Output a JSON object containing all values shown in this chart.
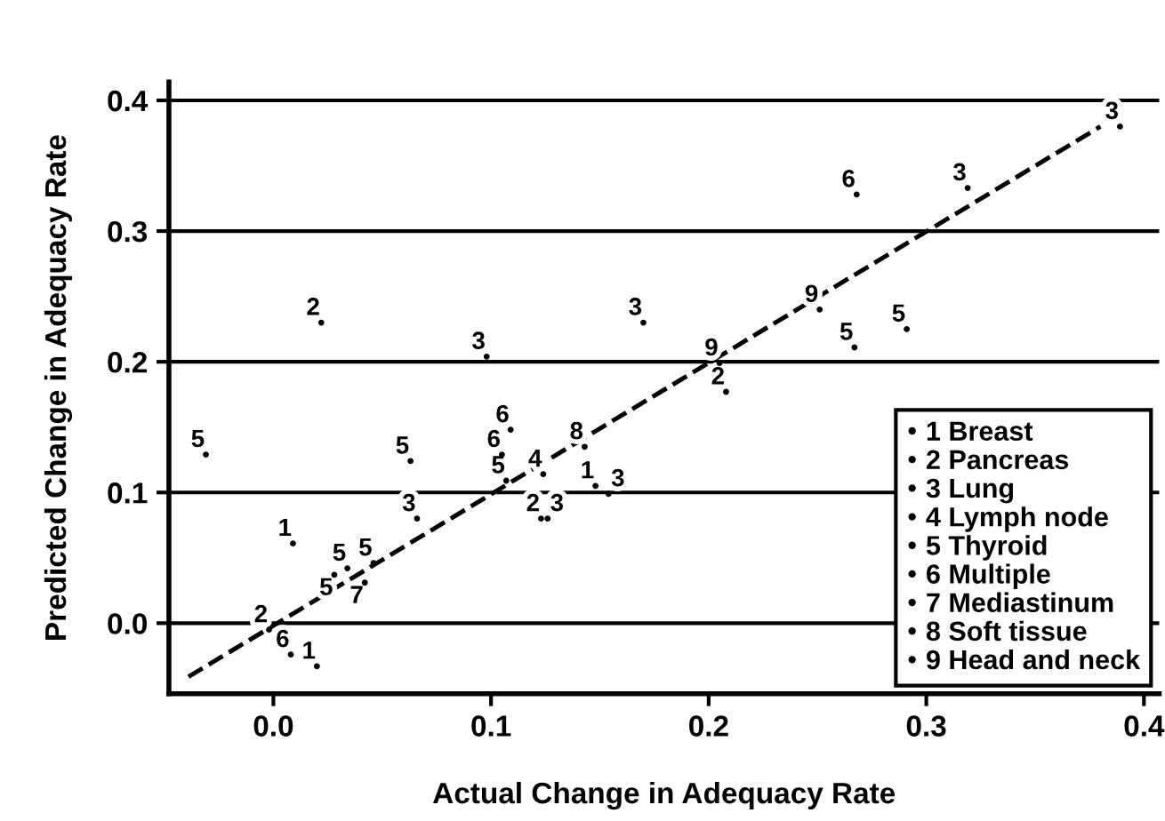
{
  "chart_data": {
    "type": "scatter",
    "xlabel": "Actual Change in Adequacy Rate",
    "ylabel": "Predicted Change in Adequacy Rate",
    "xlim": [
      -0.048,
      0.407
    ],
    "ylim": [
      -0.054,
      0.414
    ],
    "xticks": [
      {
        "value": 0,
        "label": "0.0"
      },
      0.1,
      0.2,
      0.3,
      0.4
    ],
    "yticks": [
      {
        "value": 0,
        "label": "0.0"
      },
      0.1,
      0.2,
      0.3,
      0.4
    ],
    "grid": "y",
    "legend": "bottom right",
    "series": [
      {
        "name": "1 Breast",
        "color": "#000000",
        "x": [
          0.148,
          0.009,
          0.02
        ],
        "values": [
          0.105,
          0.061,
          -0.033
        ]
      },
      {
        "name": "2 Pancreas",
        "color": "#000000",
        "x": [
          0.022,
          0.123,
          -0.002,
          0.208
        ],
        "values": [
          0.23,
          0.08,
          -0.005,
          0.177
        ]
      },
      {
        "name": "3 Lung",
        "color": "#000000",
        "x": [
          0.17,
          0.098,
          0.154,
          0.066,
          0.126,
          0.389,
          0.319
        ],
        "values": [
          0.23,
          0.204,
          0.099,
          0.08,
          0.08,
          0.38,
          0.333
        ]
      },
      {
        "name": "4 Lymph node",
        "color": "#000000",
        "x": [
          0.124
        ],
        "values": [
          0.114
        ]
      },
      {
        "name": "5 Thyroid",
        "color": "#000000",
        "x": [
          -0.031,
          0.063,
          0.107,
          0.034,
          0.046,
          0.028,
          0.291,
          0.267
        ],
        "values": [
          0.129,
          0.124,
          0.109,
          0.042,
          0.046,
          0.037,
          0.225,
          0.211
        ]
      },
      {
        "name": "6 Multiple",
        "color": "#000000",
        "x": [
          0.109,
          0.105,
          0.008,
          0.268
        ],
        "values": [
          0.148,
          0.129,
          -0.024,
          0.328
        ]
      },
      {
        "name": "7 Mediastinum",
        "color": "#000000",
        "x": [
          0.042
        ],
        "values": [
          0.031
        ]
      },
      {
        "name": "8 Soft tissue",
        "color": "#000000",
        "x": [
          0.143
        ],
        "values": [
          0.135
        ]
      },
      {
        "name": "9 Head and neck",
        "color": "#000000",
        "x": [
          0.251,
          0.205
        ],
        "values": [
          0.24,
          0.199
        ]
      },
      {
        "type": "line",
        "line_style": "dashed",
        "color": "#000000",
        "x": [
          -0.039,
          0.38
        ],
        "values": [
          -0.041,
          0.38
        ]
      }
    ],
    "annotations": [
      {
        "text": "1",
        "x": 0.148,
        "y": 0.105
      },
      {
        "text": "1",
        "x": 0.009,
        "y": 0.061
      },
      {
        "text": "1",
        "x": 0.02,
        "y": -0.033
      },
      {
        "text": "2",
        "x": 0.022,
        "y": 0.23
      },
      {
        "text": "2",
        "x": 0.123,
        "y": 0.08
      },
      {
        "text": "2",
        "x": -0.002,
        "y": -0.005
      },
      {
        "text": "2",
        "x": 0.208,
        "y": 0.177
      },
      {
        "text": "3",
        "x": 0.17,
        "y": 0.23
      },
      {
        "text": "3",
        "x": 0.098,
        "y": 0.204
      },
      {
        "text": "3",
        "x": 0.154,
        "y": 0.099
      },
      {
        "text": "3",
        "x": 0.066,
        "y": 0.08
      },
      {
        "text": "3",
        "x": 0.126,
        "y": 0.08
      },
      {
        "text": "3",
        "x": 0.389,
        "y": 0.38
      },
      {
        "text": "3",
        "x": 0.319,
        "y": 0.333
      },
      {
        "text": "4",
        "x": 0.124,
        "y": 0.114
      },
      {
        "text": "5",
        "x": -0.031,
        "y": 0.129
      },
      {
        "text": "5",
        "x": 0.063,
        "y": 0.124
      },
      {
        "text": "5",
        "x": 0.107,
        "y": 0.109
      },
      {
        "text": "5",
        "x": 0.034,
        "y": 0.042
      },
      {
        "text": "5",
        "x": 0.046,
        "y": 0.046
      },
      {
        "text": "5",
        "x": 0.028,
        "y": 0.037
      },
      {
        "text": "5",
        "x": 0.291,
        "y": 0.225
      },
      {
        "text": "5",
        "x": 0.267,
        "y": 0.211
      },
      {
        "text": "6",
        "x": 0.109,
        "y": 0.148
      },
      {
        "text": "6",
        "x": 0.105,
        "y": 0.129
      },
      {
        "text": "6",
        "x": 0.008,
        "y": -0.024
      },
      {
        "text": "6",
        "x": 0.268,
        "y": 0.328
      },
      {
        "text": "7",
        "x": 0.042,
        "y": 0.031
      },
      {
        "text": "8",
        "x": 0.143,
        "y": 0.135
      },
      {
        "text": "9",
        "x": 0.251,
        "y": 0.24
      },
      {
        "text": "9",
        "x": 0.205,
        "y": 0.199
      }
    ]
  }
}
